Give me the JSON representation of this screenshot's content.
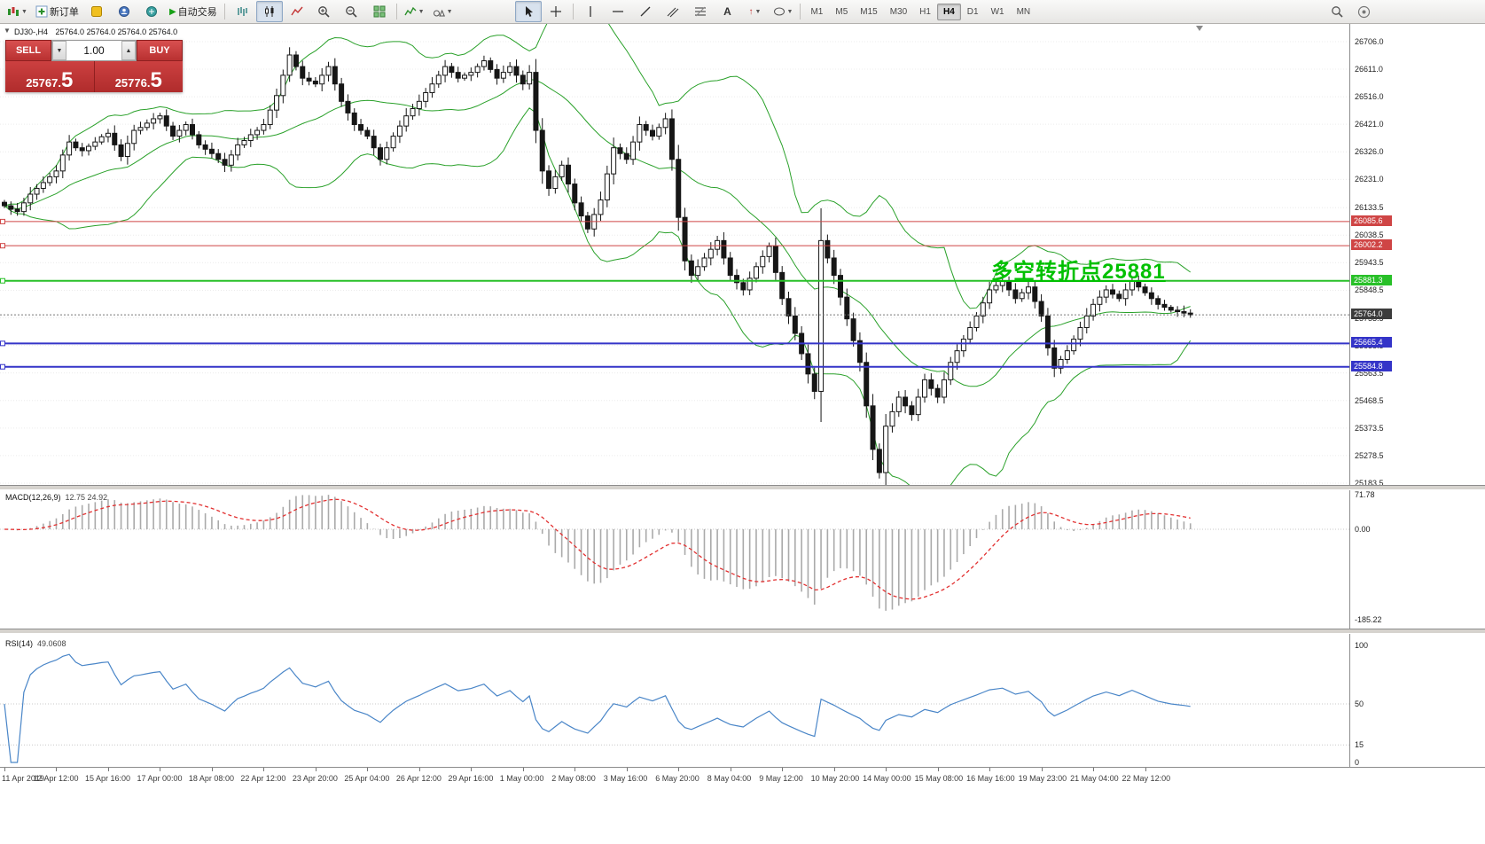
{
  "toolbar": {
    "new_order": "新订单",
    "autotrading": "自动交易",
    "timeframes": [
      "M1",
      "M5",
      "M15",
      "M30",
      "H1",
      "H4",
      "D1",
      "W1",
      "MN"
    ],
    "active_timeframe": "H4"
  },
  "chart": {
    "symbol_header": "DJ30-,H4",
    "ohlc": "25764.0 25764.0 25764.0 25764.0",
    "annotation": "多空转折点25881",
    "annotation_color": "#00c000",
    "trade_panel": {
      "sell_label": "SELL",
      "buy_label": "BUY",
      "volume": "1.00",
      "sell_price_main": "25767.",
      "sell_price_big": "5",
      "buy_price_main": "25776.",
      "buy_price_big": "5"
    }
  },
  "indicators": {
    "macd": {
      "label": "MACD(12,26,9)",
      "current": "12.75 24.92",
      "axis_labels": [
        {
          "v": 71.78,
          "t": "71.78"
        },
        {
          "v": 0,
          "t": "0.00"
        },
        {
          "v": -185.22,
          "t": "-185.22"
        }
      ]
    },
    "rsi": {
      "label": "RSI(14)",
      "current": "49.0608",
      "axis_labels": [
        {
          "v": 100,
          "t": "100"
        },
        {
          "v": 50,
          "t": "50"
        },
        {
          "v": 15,
          "t": "15"
        },
        {
          "v": 0,
          "t": "0"
        }
      ],
      "level_lines": [
        50,
        15
      ]
    }
  },
  "chart_data": {
    "type": "candlestick",
    "symbol": "DJ30-",
    "timeframe": "H4",
    "price_ticks": [
      "26706.0",
      "26611.0",
      "26516.0",
      "26421.0",
      "26326.0",
      "26231.0",
      "26133.5",
      "26038.5",
      "25943.5",
      "25848.5",
      "25753.5",
      "25658.5",
      "25563.5",
      "25468.5",
      "25373.5",
      "25278.5",
      "25183.5"
    ],
    "levels": [
      {
        "label": "26085.6",
        "price": 26085.6,
        "color": "#cf4545",
        "width": 1
      },
      {
        "label": "26002.2",
        "price": 26002.2,
        "color": "#cf4545",
        "width": 1
      },
      {
        "label": "25881.3",
        "price": 25881.3,
        "color": "#28c028",
        "width": 2
      },
      {
        "label": "25665.4",
        "price": 25665.4,
        "color": "#3434c8",
        "width": 2
      },
      {
        "label": "25584.8",
        "price": 25584.8,
        "color": "#3434c8",
        "width": 2
      }
    ],
    "current_price": {
      "label": "25764.0",
      "price": 25764.0,
      "color": "#3c3c3c"
    },
    "time_labels": [
      "11 Apr 2019",
      "12 Apr 12:00",
      "15 Apr 16:00",
      "17 Apr 00:00",
      "18 Apr 08:00",
      "22 Apr 12:00",
      "23 Apr 20:00",
      "25 Apr 04:00",
      "26 Apr 12:00",
      "29 Apr 16:00",
      "1 May 00:00",
      "2 May 08:00",
      "3 May 16:00",
      "6 May 20:00",
      "8 May 04:00",
      "9 May 12:00",
      "10 May 20:00",
      "14 May 00:00",
      "15 May 08:00",
      "16 May 16:00",
      "19 May 23:00",
      "21 May 04:00",
      "22 May 12:00"
    ],
    "closes": [
      26140,
      26128,
      26120,
      26150,
      26180,
      26200,
      26220,
      26240,
      26260,
      26315,
      26360,
      26340,
      26330,
      26345,
      26360,
      26378,
      26390,
      26350,
      26310,
      26355,
      26400,
      26410,
      26425,
      26440,
      26450,
      26415,
      26380,
      26400,
      26420,
      26385,
      26350,
      26335,
      26320,
      26300,
      26280,
      26315,
      26350,
      26365,
      26385,
      26400,
      26420,
      26470,
      26520,
      26590,
      26660,
      26620,
      26580,
      26570,
      26560,
      26590,
      26620,
      26560,
      26500,
      26460,
      26420,
      26400,
      26380,
      26340,
      26300,
      26340,
      26380,
      26415,
      26450,
      26475,
      26500,
      26530,
      26560,
      26590,
      26620,
      26600,
      26580,
      26590,
      26600,
      26620,
      26640,
      26610,
      26580,
      26600,
      26620,
      26590,
      26560,
      26600,
      26400,
      26260,
      26200,
      26240,
      26280,
      26215,
      26150,
      26105,
      26060,
      26110,
      26160,
      26250,
      26340,
      26320,
      26300,
      26360,
      26420,
      26400,
      26380,
      26410,
      26440,
      26300,
      26100,
      25950,
      25900,
      25930,
      25960,
      25990,
      26020,
      25960,
      25900,
      25875,
      25850,
      25890,
      25930,
      25965,
      26000,
      25910,
      25820,
      25760,
      25700,
      25630,
      25560,
      25500,
      26020,
      25960,
      25900,
      25825,
      25750,
      25675,
      25600,
      25450,
      25300,
      25220,
      25380,
      25430,
      25480,
      25450,
      25420,
      25480,
      25540,
      25510,
      25480,
      25540,
      25600,
      25640,
      25680,
      25720,
      25760,
      25805,
      25850,
      25865,
      25880,
      25850,
      25820,
      25840,
      25860,
      25810,
      25760,
      25650,
      25580,
      25610,
      25640,
      25680,
      25720,
      25760,
      25800,
      25825,
      25850,
      25835,
      25820,
      25850,
      25880,
      25860,
      25840,
      25820,
      25800,
      25790,
      25780,
      25775,
      25770,
      25764
    ],
    "bollinger": {
      "period": 20,
      "deviation": 2,
      "color": "#2aa12a"
    },
    "styles": {
      "bull": "#ffffff",
      "bear": "#161616",
      "wick": "#161616",
      "grid": "#ececec",
      "macd_hist": "#aaaaaa",
      "macd_signal": "#e23030",
      "rsi_line": "#4a86c8"
    }
  }
}
